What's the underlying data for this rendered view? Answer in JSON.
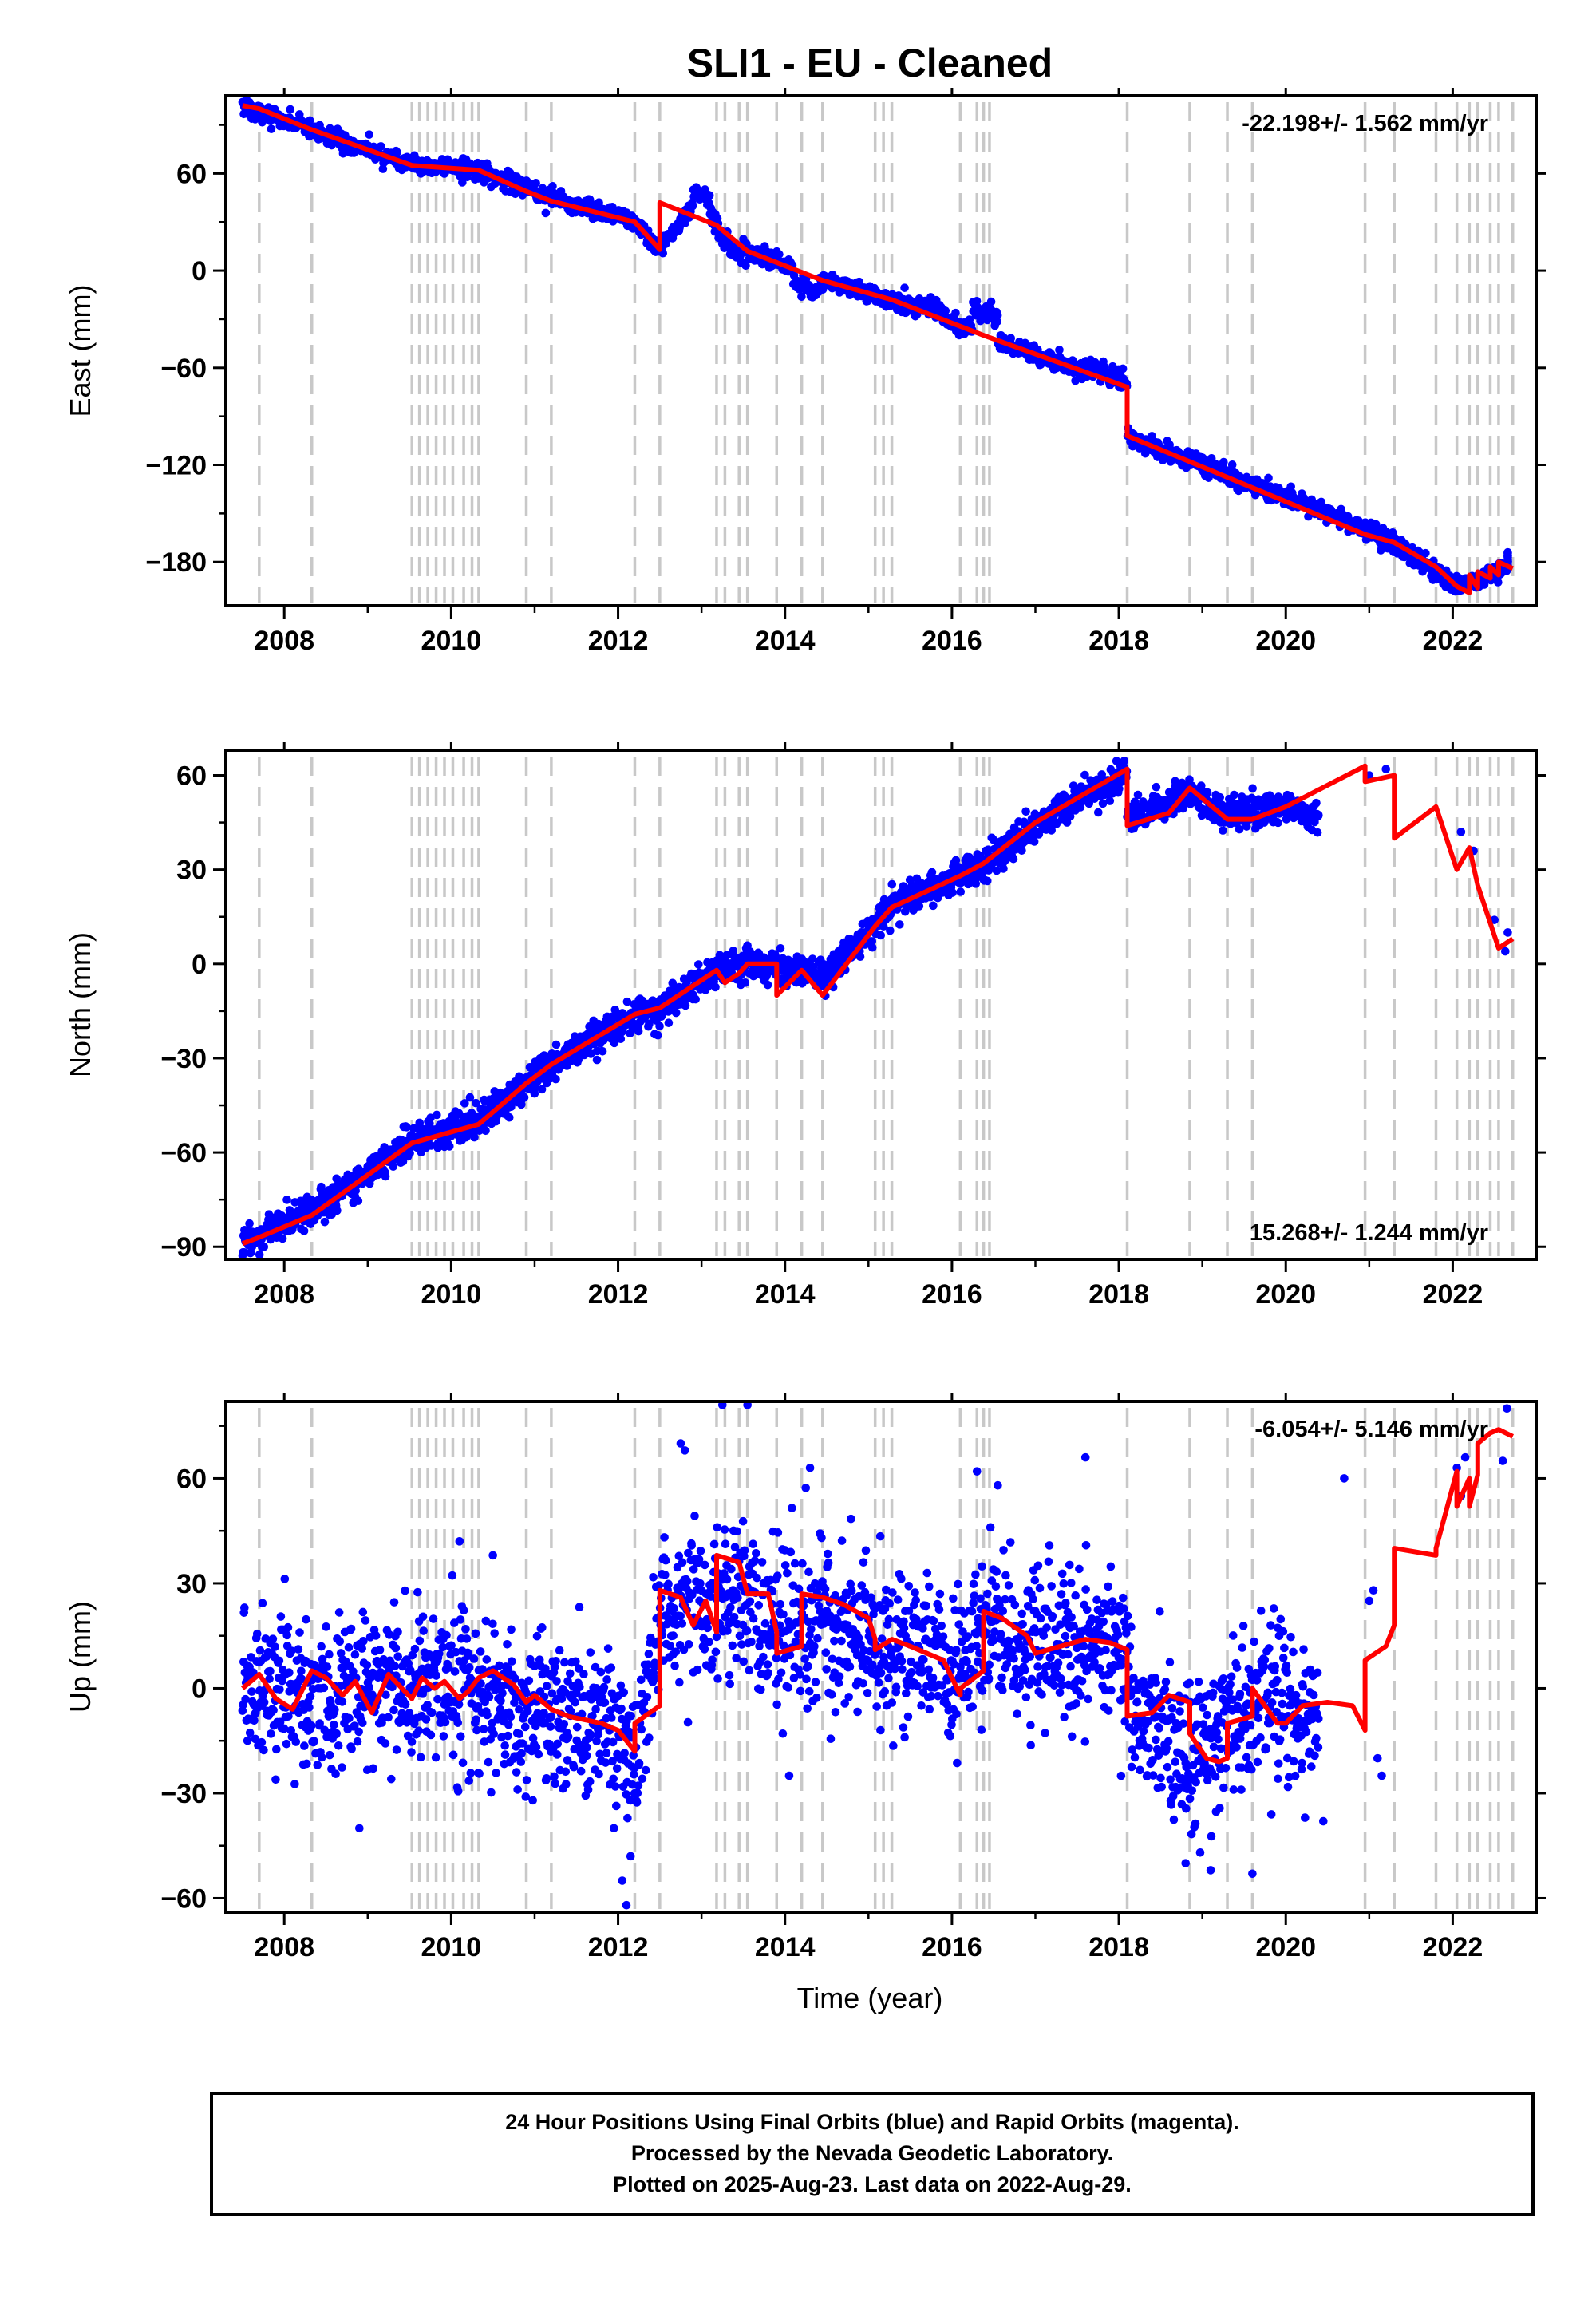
{
  "chart_data": {
    "type": "scatter",
    "title": "SLI1  - EU - Cleaned",
    "xlabel": "Time (year)",
    "xlim": [
      2007.3,
      2023.0
    ],
    "xticks": [
      "2008",
      "2010",
      "2012",
      "2014",
      "2016",
      "2018",
      "2020",
      "2022"
    ],
    "colors": {
      "observations": "#0000ff",
      "model": "#ff0000",
      "steps": "#c8c8c8"
    },
    "step_epochs": [
      2007.7,
      2008.33,
      2009.53,
      2009.62,
      2009.72,
      2009.82,
      2009.92,
      2010.02,
      2010.15,
      2010.25,
      2010.33,
      2010.9,
      2011.2,
      2012.2,
      2012.5,
      2013.18,
      2013.28,
      2013.45,
      2013.55,
      2013.9,
      2014.2,
      2014.45,
      2015.08,
      2015.18,
      2015.28,
      2016.1,
      2016.3,
      2016.38,
      2016.45,
      2018.1,
      2018.85,
      2019.3,
      2019.6,
      2020.95,
      2021.3,
      2021.8,
      2022.05,
      2022.2,
      2022.3,
      2022.45,
      2022.55,
      2022.72
    ],
    "panels": [
      {
        "ylabel": "East (mm)",
        "ylim": [
          -207,
          108
        ],
        "yticks": [
          "60",
          "0",
          "−60",
          "−120",
          "−180"
        ],
        "rate": "-22.198+/- 1.562 mm/yr",
        "rate_position": "top-right",
        "data_range": [
          2007.5,
          2022.66
        ],
        "scatter_sd": 2.8,
        "model": {
          "x": [
            2007.5,
            2007.7,
            2007.7,
            2008.33,
            2008.33,
            2009.53,
            2009.53,
            2010.33,
            2010.33,
            2010.9,
            2010.9,
            2011.2,
            2011.2,
            2012.2,
            2012.2,
            2012.5,
            2012.5,
            2013.18,
            2013.18,
            2013.55,
            2013.55,
            2014.45,
            2014.45,
            2015.28,
            2015.28,
            2016.38,
            2016.38,
            2018.1,
            2018.1,
            2020.95,
            2020.95,
            2021.3,
            2021.3,
            2021.8,
            2021.8,
            2022.05,
            2022.05,
            2022.2,
            2022.2,
            2022.3,
            2022.3,
            2022.45,
            2022.45,
            2022.55,
            2022.55,
            2022.72
          ],
          "y": [
            102,
            100,
            100,
            87,
            87,
            65,
            65,
            62,
            62,
            49,
            49,
            43,
            43,
            30,
            30,
            13,
            42,
            28,
            28,
            12,
            12,
            -6,
            -6,
            -18,
            -18,
            -40,
            -40,
            -72,
            -102,
            -163,
            -163,
            -168,
            -168,
            -183,
            -183,
            -195,
            -195,
            -199,
            -188,
            -196,
            -186,
            -190,
            -183,
            -188,
            -180,
            -184
          ]
        },
        "cloud": [
          [
            2007.5,
            101
          ],
          [
            2008.33,
            87
          ],
          [
            2009.53,
            65
          ],
          [
            2010.33,
            62
          ],
          [
            2011.2,
            45
          ],
          [
            2012.2,
            30
          ],
          [
            2012.5,
            13
          ],
          [
            2012.9,
            40
          ],
          [
            2013.18,
            30
          ],
          [
            2013.55,
            12
          ],
          [
            2014.45,
            -6
          ],
          [
            2015.28,
            -18
          ],
          [
            2016.38,
            -40
          ],
          [
            2018.1,
            -72
          ],
          [
            2018.1,
            -102
          ],
          [
            2019.5,
            -130
          ],
          [
            2020.5,
            -150
          ],
          [
            2021.3,
            -168
          ],
          [
            2022.05,
            -195
          ],
          [
            2022.66,
            -184
          ]
        ],
        "bumps": [
          [
            2012.9,
            2013.1,
            10
          ],
          [
            2013.2,
            2013.5,
            -6
          ],
          [
            2014.1,
            2014.4,
            -8
          ],
          [
            2015.6,
            2015.9,
            5
          ],
          [
            2016.25,
            2016.55,
            14
          ],
          [
            2017.6,
            2018.0,
            4
          ]
        ]
      },
      {
        "ylabel": "North (mm)",
        "ylim": [
          -94,
          68
        ],
        "yticks": [
          "60",
          "30",
          "0",
          "−30",
          "−60",
          "−90"
        ],
        "rate": "15.268+/- 1.244 mm/yr",
        "rate_position": "bottom-right",
        "data_range": [
          2007.5,
          2022.66
        ],
        "scatter_sd": 2.5,
        "model": {
          "x": [
            2007.5,
            2007.7,
            2007.7,
            2008.33,
            2008.33,
            2009.53,
            2009.53,
            2010.33,
            2010.33,
            2010.9,
            2010.9,
            2011.2,
            2011.2,
            2012.2,
            2012.2,
            2012.5,
            2012.5,
            2013.18,
            2013.18,
            2013.28,
            2013.28,
            2013.45,
            2013.45,
            2013.55,
            2013.55,
            2013.9,
            2013.9,
            2014.2,
            2014.2,
            2014.45,
            2014.45,
            2015.08,
            2015.08,
            2015.28,
            2015.28,
            2016.1,
            2016.1,
            2016.38,
            2016.38,
            2017.0,
            2017.0,
            2018.1,
            2018.1,
            2018.6,
            2018.6,
            2018.85,
            2018.85,
            2019.3,
            2019.3,
            2019.6,
            2019.6,
            2020.0,
            2020.0,
            2020.95,
            2020.95,
            2021.3,
            2021.3,
            2021.8,
            2021.8,
            2022.05,
            2022.05,
            2022.2,
            2022.2,
            2022.3,
            2022.3,
            2022.45,
            2022.45,
            2022.55,
            2022.55,
            2022.72
          ],
          "y": [
            -89,
            -87,
            -87,
            -80,
            -80,
            -57,
            -57,
            -51,
            -51,
            -38,
            -38,
            -32,
            -32,
            -16,
            -16,
            -14,
            -14,
            -2,
            -2,
            -6,
            -6,
            -3,
            -3,
            0,
            0,
            0,
            -10,
            -2,
            -2,
            -10,
            -10,
            12,
            12,
            18,
            18,
            28,
            28,
            32,
            32,
            45,
            45,
            62,
            44,
            48,
            48,
            56,
            56,
            46,
            46,
            46,
            46,
            50,
            50,
            63,
            58,
            60,
            40,
            50,
            50,
            30,
            30,
            37,
            37,
            25,
            25,
            13,
            13,
            5,
            5,
            8
          ]
        },
        "cloud": [
          [
            2007.5,
            -89
          ],
          [
            2008.33,
            -79
          ],
          [
            2009.53,
            -56
          ],
          [
            2010.33,
            -50
          ],
          [
            2011.2,
            -32
          ],
          [
            2012.2,
            -16
          ],
          [
            2012.5,
            -14
          ],
          [
            2013.18,
            -2
          ],
          [
            2013.55,
            0
          ],
          [
            2014.2,
            -2
          ],
          [
            2014.45,
            -4
          ],
          [
            2015.08,
            12
          ],
          [
            2015.28,
            18
          ],
          [
            2016.1,
            28
          ],
          [
            2016.38,
            32
          ],
          [
            2017.0,
            44
          ],
          [
            2018.1,
            61
          ],
          [
            2018.1,
            46
          ],
          [
            2018.85,
            54
          ],
          [
            2019.3,
            48
          ],
          [
            2019.6,
            48
          ],
          [
            2020.0,
            50
          ],
          [
            2020.4,
            46
          ]
        ],
        "sparse": [
          [
            2021.0,
            60
          ],
          [
            2021.2,
            62
          ],
          [
            2022.1,
            42
          ],
          [
            2022.25,
            36
          ],
          [
            2022.5,
            14
          ],
          [
            2022.63,
            4
          ],
          [
            2022.66,
            10
          ]
        ]
      },
      {
        "ylabel": "Up (mm)",
        "ylim": [
          -64,
          82
        ],
        "yticks": [
          "60",
          "30",
          "0",
          "−30",
          "−60"
        ],
        "rate": "-6.054+/- 5.146 mm/yr",
        "rate_position": "top-right",
        "data_range": [
          2007.5,
          2022.66
        ],
        "scatter_sd": 11,
        "model": {
          "x": [
            2007.5,
            2007.7,
            2007.9,
            2008.1,
            2008.33,
            2008.5,
            2008.7,
            2008.85,
            2009.05,
            2009.25,
            2009.53,
            2009.65,
            2009.8,
            2009.92,
            2010.1,
            2010.2,
            2010.33,
            2010.5,
            2010.75,
            2010.9,
            2011.0,
            2011.2,
            2011.4,
            2011.6,
            2011.8,
            2012.0,
            2012.2,
            2012.2,
            2012.5,
            2012.5,
            2012.75,
            2012.9,
            2013.05,
            2013.18,
            2013.18,
            2013.45,
            2013.55,
            2013.8,
            2013.9,
            2013.9,
            2014.2,
            2014.2,
            2014.45,
            2014.7,
            2015.0,
            2015.08,
            2015.08,
            2015.28,
            2015.5,
            2015.9,
            2016.1,
            2016.1,
            2016.38,
            2016.38,
            2016.6,
            2016.9,
            2017.0,
            2017.3,
            2017.6,
            2017.9,
            2018.1,
            2018.1,
            2018.4,
            2018.6,
            2018.85,
            2018.85,
            2019.05,
            2019.2,
            2019.3,
            2019.3,
            2019.6,
            2019.6,
            2019.9,
            2020.0,
            2020.2,
            2020.5,
            2020.8,
            2020.95,
            2020.95,
            2021.2,
            2021.3,
            2021.3,
            2021.8,
            2021.8,
            2022.05,
            2022.05,
            2022.2,
            2022.2,
            2022.3,
            2022.3,
            2022.45,
            2022.55,
            2022.72
          ],
          "y": [
            0,
            4,
            -3,
            -6,
            5,
            3,
            -2,
            2,
            -7,
            4,
            -3,
            3,
            0,
            2,
            -3,
            -1,
            3,
            5,
            1,
            -4,
            -2,
            -6,
            -8,
            -9,
            -10,
            -12,
            -18,
            -10,
            -5,
            28,
            26,
            18,
            25,
            16,
            38,
            36,
            27,
            27,
            16,
            10,
            12,
            27,
            26,
            24,
            20,
            14,
            11,
            14,
            12,
            8,
            -2,
            0,
            5,
            22,
            20,
            15,
            10,
            12,
            14,
            13,
            11,
            -8,
            -7,
            -2,
            -4,
            -13,
            -20,
            -21,
            -20,
            -10,
            -8,
            0,
            -10,
            -10,
            -5,
            -4,
            -5,
            -12,
            8,
            12,
            18,
            40,
            38,
            40,
            62,
            52,
            60,
            52,
            61,
            70,
            73,
            74,
            72
          ]
        },
        "cloud": [
          [
            2007.5,
            0
          ],
          [
            2009.0,
            0
          ],
          [
            2010.0,
            0
          ],
          [
            2011.0,
            -5
          ],
          [
            2011.9,
            -10
          ],
          [
            2012.2,
            -20
          ],
          [
            2012.5,
            20
          ],
          [
            2012.9,
            25
          ],
          [
            2013.05,
            20
          ],
          [
            2013.4,
            30
          ],
          [
            2013.9,
            14
          ],
          [
            2014.3,
            20
          ],
          [
            2015.0,
            14
          ],
          [
            2016.0,
            4
          ],
          [
            2016.5,
            15
          ],
          [
            2017.5,
            12
          ],
          [
            2018.05,
            10
          ],
          [
            2018.2,
            -8
          ],
          [
            2019.0,
            -20
          ],
          [
            2019.6,
            -5
          ],
          [
            2020.4,
            -5
          ]
        ],
        "sparse": [
          [
            2021.0,
            25
          ],
          [
            2021.1,
            -20
          ],
          [
            2021.15,
            -25
          ],
          [
            2021.05,
            28
          ],
          [
            2022.05,
            63
          ],
          [
            2022.1,
            55
          ],
          [
            2022.15,
            66
          ],
          [
            2022.6,
            65
          ],
          [
            2022.65,
            80
          ]
        ],
        "outliers": [
          [
            2012.75,
            70
          ],
          [
            2012.8,
            68
          ],
          [
            2013.25,
            81
          ],
          [
            2013.55,
            81
          ],
          [
            2014.3,
            63
          ],
          [
            2014.05,
            -25
          ],
          [
            2016.3,
            62
          ],
          [
            2016.55,
            58
          ],
          [
            2017.6,
            66
          ],
          [
            2012.05,
            -55
          ],
          [
            2012.1,
            -62
          ],
          [
            2012.15,
            -48
          ],
          [
            2011.95,
            -40
          ],
          [
            2018.8,
            -50
          ],
          [
            2019.1,
            -52
          ],
          [
            2019.6,
            -53
          ],
          [
            2010.1,
            42
          ],
          [
            2010.5,
            38
          ],
          [
            2008.9,
            -40
          ],
          [
            2020.45,
            -38
          ],
          [
            2020.7,
            60
          ]
        ]
      }
    ]
  },
  "footer": {
    "line1": "24 Hour Positions Using Final Orbits (blue) and Rapid Orbits (magenta).",
    "line2": "Processed by the Nevada Geodetic Laboratory.",
    "line3": "Plotted on 2025-Aug-23. Last data on 2022-Aug-29."
  }
}
